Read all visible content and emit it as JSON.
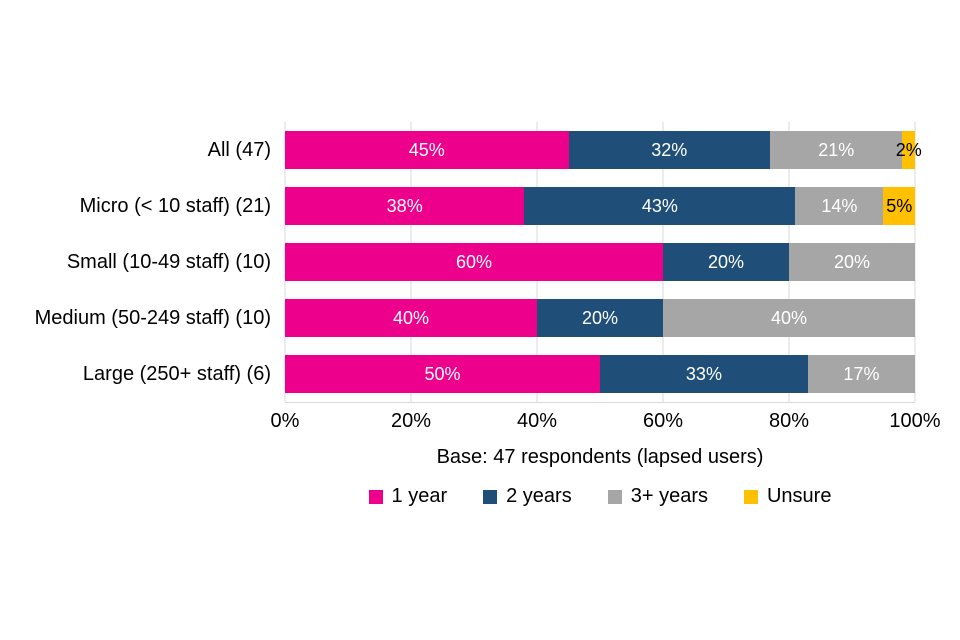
{
  "chart_data": {
    "type": "bar",
    "orientation": "horizontal",
    "stacked": true,
    "title": "",
    "xlabel": "Base: 47 respondents (lapsed users)",
    "ylabel": "",
    "xlim": [
      0,
      100
    ],
    "grid": true,
    "legend_position": "bottom",
    "categories": [
      "All (47)",
      "Micro (< 10 staff) (21)",
      "Small (10-49 staff) (10)",
      "Medium (50-249 staff) (10)",
      "Large (250+ staff) (6)"
    ],
    "series": [
      {
        "name": "1 year",
        "color": "#EC008C",
        "label_color": "#FFFFFF",
        "values": [
          45,
          38,
          60,
          40,
          50
        ]
      },
      {
        "name": "2 years",
        "color": "#1F4E79",
        "label_color": "#FFFFFF",
        "values": [
          32,
          43,
          20,
          20,
          33
        ]
      },
      {
        "name": "3+ years",
        "color": "#A6A6A6",
        "label_color": "#FFFFFF",
        "values": [
          21,
          14,
          20,
          40,
          17
        ]
      },
      {
        "name": "Unsure",
        "color": "#FFC000",
        "label_color": "#000000",
        "values": [
          2,
          5,
          0,
          0,
          0
        ]
      }
    ],
    "x_ticks": [
      "0%",
      "20%",
      "40%",
      "60%",
      "80%",
      "100%"
    ],
    "value_suffix": "%"
  },
  "colors": {
    "gridline": "#D9D9D9",
    "background": "#FFFFFF",
    "text": "#000000"
  }
}
